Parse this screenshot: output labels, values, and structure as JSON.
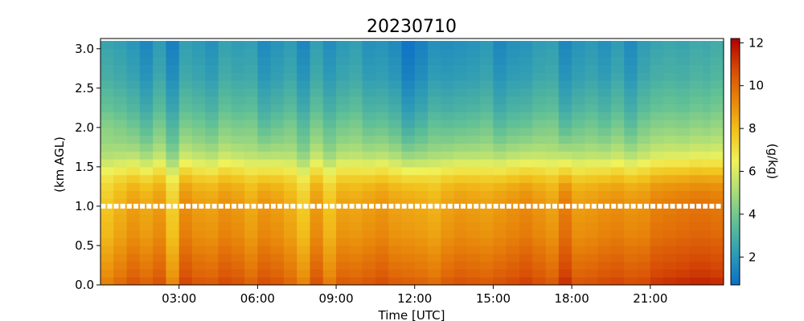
{
  "chart_data": {
    "type": "heatmap",
    "title": "20230710",
    "xlabel": "Time [UTC]",
    "ylabel": "(km AGL)",
    "colorbar_label": "(g/kg)",
    "x_range_hours": [
      0,
      23.8
    ],
    "y_range_km": [
      0.0,
      3.13
    ],
    "x_ticks": [
      {
        "value": 3,
        "label": "03:00"
      },
      {
        "value": 6,
        "label": "06:00"
      },
      {
        "value": 9,
        "label": "09:00"
      },
      {
        "value": 12,
        "label": "12:00"
      },
      {
        "value": 15,
        "label": "15:00"
      },
      {
        "value": 18,
        "label": "18:00"
      },
      {
        "value": 21,
        "label": "21:00"
      }
    ],
    "y_ticks": [
      {
        "value": 0.0,
        "label": "0.0"
      },
      {
        "value": 0.5,
        "label": "0.5"
      },
      {
        "value": 1.0,
        "label": "1.0"
      },
      {
        "value": 1.5,
        "label": "1.5"
      },
      {
        "value": 2.0,
        "label": "2.0"
      },
      {
        "value": 2.5,
        "label": "2.5"
      },
      {
        "value": 3.0,
        "label": "3.0"
      }
    ],
    "colorbar": {
      "range": [
        0.7,
        12.2
      ],
      "ticks": [
        {
          "value": 2,
          "label": "2"
        },
        {
          "value": 4,
          "label": "4"
        },
        {
          "value": 6,
          "label": "6"
        },
        {
          "value": 8,
          "label": "8"
        },
        {
          "value": 10,
          "label": "10"
        },
        {
          "value": 12,
          "label": "12"
        }
      ],
      "colormap_stops": [
        "#0a6fc6",
        "#2e9bb6",
        "#5fbf96",
        "#a8dc7a",
        "#f0f25a",
        "#f2c21c",
        "#e8860a",
        "#d64a06",
        "#b00000"
      ]
    },
    "levels_km": [
      0.05,
      0.15,
      0.25,
      0.35,
      0.45,
      0.55,
      0.65,
      0.75,
      0.85,
      0.95,
      1.05,
      1.15,
      1.25,
      1.35,
      1.45,
      1.55,
      1.65,
      1.75,
      1.85,
      1.95,
      2.05,
      2.15,
      2.25,
      2.35,
      2.45,
      2.55,
      2.65,
      2.75,
      2.85,
      2.95,
      3.05
    ],
    "profile_surface_to_top_gkg": [
      10.3,
      10.0,
      9.8,
      9.6,
      9.4,
      9.2,
      9.0,
      8.9,
      8.8,
      8.7,
      8.6,
      8.4,
      8.1,
      7.6,
      6.9,
      6.1,
      5.4,
      4.9,
      4.5,
      4.2,
      3.9,
      3.6,
      3.3,
      3.1,
      2.9,
      2.7,
      2.5,
      2.4,
      2.3,
      2.2,
      2.1
    ],
    "column_times_hours": [
      0.25,
      0.75,
      1.25,
      1.75,
      2.25,
      2.75,
      3.25,
      3.75,
      4.25,
      4.75,
      5.25,
      5.75,
      6.25,
      6.75,
      7.25,
      7.75,
      8.25,
      8.75,
      9.25,
      9.75,
      10.25,
      10.75,
      11.25,
      11.75,
      12.25,
      12.75,
      13.25,
      13.75,
      14.25,
      14.75,
      15.25,
      15.75,
      16.25,
      16.75,
      17.25,
      17.75,
      18.25,
      18.75,
      19.25,
      19.75,
      20.25,
      20.75,
      21.25,
      21.75,
      22.25,
      22.75,
      23.25,
      23.55
    ],
    "column_offsets_gkg": [
      -0.9,
      -0.4,
      0.1,
      -0.2,
      0.2,
      -1.1,
      0.5,
      0.1,
      0.0,
      0.4,
      0.2,
      -0.2,
      0.3,
      0.1,
      -0.3,
      -1.0,
      0.2,
      -0.8,
      0.0,
      -0.1,
      0.1,
      0.3,
      0.0,
      -0.1,
      -0.2,
      -0.4,
      0.0,
      0.2,
      0.1,
      0.0,
      0.2,
      0.4,
      0.6,
      0.3,
      0.0,
      0.9,
      0.1,
      0.2,
      0.4,
      0.5,
      0.3,
      0.4,
      0.8,
      0.9,
      1.0,
      1.1,
      1.1,
      1.0
    ],
    "upper_offsets_gkg": [
      0.4,
      0.2,
      -0.1,
      -0.6,
      0.1,
      -0.8,
      0.2,
      0.0,
      -0.3,
      0.3,
      0.1,
      0.2,
      -0.5,
      -0.2,
      0.1,
      -0.6,
      0.2,
      -0.4,
      0.0,
      0.2,
      -0.3,
      -0.2,
      -0.5,
      -1.2,
      -0.8,
      -0.3,
      -0.4,
      -0.3,
      -0.2,
      0.0,
      -0.6,
      -0.3,
      -0.2,
      0.1,
      0.2,
      -0.6,
      -0.2,
      0.0,
      -0.3,
      0.1,
      -0.5,
      0.1,
      0.4,
      0.5,
      0.4,
      0.6,
      0.5,
      0.7
    ],
    "marker_line": {
      "height_km": 1.0,
      "interval_hours": 0.25,
      "color": "#ffffff"
    }
  }
}
